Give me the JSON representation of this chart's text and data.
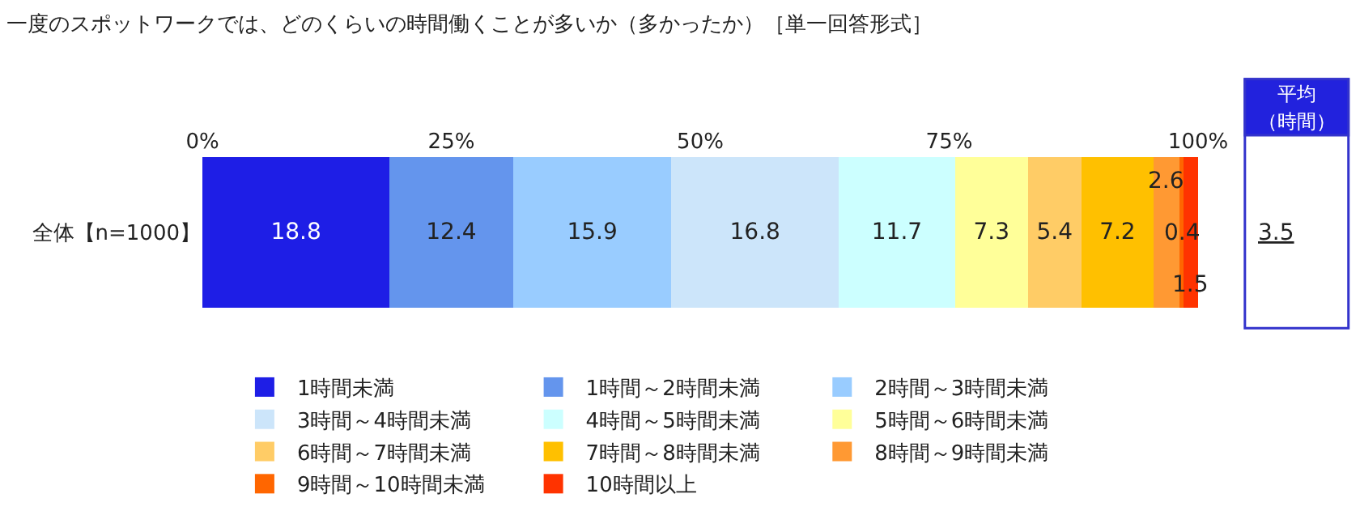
{
  "chart_data": {
    "type": "bar",
    "orientation": "horizontal",
    "stacked": true,
    "data_labels": true,
    "legend": "bottom",
    "title": "一度のスポットワークでは、どのくらいの時間働くことが多いか（多かったか）［単一回答形式］",
    "categories": [
      "全体【n=1000】"
    ],
    "xlim": [
      0,
      100
    ],
    "xticks": [
      {
        "value": 0,
        "label": "0%"
      },
      {
        "value": 25,
        "label": "25%"
      },
      {
        "value": 50,
        "label": "50%"
      },
      {
        "value": 75,
        "label": "75%"
      },
      {
        "value": 100,
        "label": "100%"
      }
    ],
    "series": [
      {
        "name": "1時間未満",
        "color": "#1e1ee6",
        "values": [
          18.8
        ]
      },
      {
        "name": "1時間～2時間未満",
        "color": "#6495ed",
        "values": [
          12.4
        ]
      },
      {
        "name": "2時間～3時間未満",
        "color": "#99ccff",
        "values": [
          15.9
        ]
      },
      {
        "name": "3時間～4時間未満",
        "color": "#cce5fa",
        "values": [
          16.8
        ]
      },
      {
        "name": "4時間～5時間未満",
        "color": "#ccffff",
        "values": [
          11.7
        ]
      },
      {
        "name": "5時間～6時間未満",
        "color": "#ffff99",
        "values": [
          7.3
        ]
      },
      {
        "name": "6時間～7時間未満",
        "color": "#ffcc66",
        "values": [
          5.4
        ]
      },
      {
        "name": "7時間～8時間未満",
        "color": "#ffc000",
        "values": [
          7.2
        ]
      },
      {
        "name": "8時間～9時間未満",
        "color": "#ff9933",
        "values": [
          2.6
        ]
      },
      {
        "name": "9時間～10時間未満",
        "color": "#ff6600",
        "values": [
          0.4
        ]
      },
      {
        "name": "10時間以上",
        "color": "#ff3300",
        "values": [
          1.5
        ]
      }
    ],
    "annotations": [
      "平均",
      "（時間）",
      "3.5"
    ]
  }
}
